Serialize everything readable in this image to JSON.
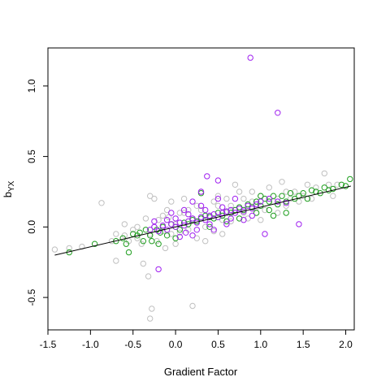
{
  "chart_data": {
    "type": "scatter",
    "title": "",
    "xlabel": "Gradient Factor",
    "ylabel_main": "b",
    "ylabel_sub": "YX",
    "xlim": [
      -1.5,
      2.1
    ],
    "ylim": [
      -0.73,
      1.27
    ],
    "x_ticks": [
      -1.5,
      -1.0,
      -0.5,
      0.0,
      0.5,
      1.0,
      1.5,
      2.0
    ],
    "x_tick_labels": [
      "-1.5",
      "-1.0",
      "-0.5",
      "0.0",
      "0.5",
      "1.0",
      "1.5",
      "2.0"
    ],
    "y_ticks": [
      -0.5,
      0.0,
      0.5,
      1.0
    ],
    "y_tick_labels": [
      "-0.5",
      "0.0",
      "0.5",
      "1.0"
    ],
    "grid": false,
    "legend": "none",
    "colors": {
      "gray": "#c0c0c0",
      "green": "#1e9e1e",
      "purple": "#a020f0",
      "line": "#000000"
    },
    "fit_line": {
      "x": [
        -1.42,
        2.06
      ],
      "y": [
        -0.2,
        0.29
      ]
    },
    "series": [
      {
        "color": "gray",
        "points": [
          [
            -1.42,
            -0.16
          ],
          [
            -1.25,
            -0.15
          ],
          [
            -1.1,
            -0.14
          ],
          [
            -0.87,
            0.17
          ],
          [
            -0.75,
            -0.1
          ],
          [
            -0.7,
            -0.24
          ],
          [
            -0.6,
            -0.06
          ],
          [
            -0.55,
            -0.1
          ],
          [
            -0.5,
            -0.02
          ],
          [
            -0.45,
            -0.08
          ],
          [
            -0.4,
            -0.12
          ],
          [
            -0.35,
            0.06
          ],
          [
            -0.38,
            -0.26
          ],
          [
            -0.3,
            -0.05
          ],
          [
            -0.25,
            0.0
          ],
          [
            -0.22,
            -0.1
          ],
          [
            -0.2,
            0.05
          ],
          [
            -0.15,
            -0.03
          ],
          [
            -0.12,
            -0.15
          ],
          [
            -0.08,
            0.07
          ],
          [
            -0.05,
            -0.05
          ],
          [
            0.0,
            0.02
          ],
          [
            0.05,
            -0.04
          ],
          [
            0.1,
            0.1
          ],
          [
            0.15,
            -0.02
          ],
          [
            0.2,
            0.06
          ],
          [
            0.25,
            -0.08
          ],
          [
            0.3,
            0.12
          ],
          [
            0.35,
            0.0
          ],
          [
            0.4,
            0.08
          ],
          [
            0.45,
            -0.03
          ],
          [
            0.5,
            0.15
          ],
          [
            0.55,
            0.05
          ],
          [
            0.6,
            0.2
          ],
          [
            0.65,
            0.04
          ],
          [
            0.7,
            0.12
          ],
          [
            0.75,
            0.25
          ],
          [
            0.8,
            0.1
          ],
          [
            0.85,
            0.06
          ],
          [
            0.9,
            0.18
          ],
          [
            0.95,
            0.14
          ],
          [
            1.0,
            0.22
          ],
          [
            1.05,
            0.12
          ],
          [
            1.1,
            0.28
          ],
          [
            1.15,
            0.18
          ],
          [
            1.2,
            0.2
          ],
          [
            1.25,
            0.32
          ],
          [
            1.3,
            0.15
          ],
          [
            1.35,
            0.2
          ],
          [
            1.4,
            0.25
          ],
          [
            1.5,
            0.22
          ],
          [
            1.55,
            0.3
          ],
          [
            1.6,
            0.2
          ],
          [
            1.65,
            0.28
          ],
          [
            1.75,
            0.38
          ],
          [
            1.8,
            0.3
          ],
          [
            1.85,
            0.22
          ],
          [
            1.9,
            0.3
          ],
          [
            -0.3,
            0.22
          ],
          [
            -0.25,
            0.2
          ],
          [
            -0.32,
            -0.35
          ],
          [
            -0.28,
            -0.58
          ],
          [
            -0.3,
            -0.65
          ],
          [
            0.2,
            -0.56
          ],
          [
            0.3,
            0.25
          ],
          [
            0.5,
            0.22
          ],
          [
            0.7,
            0.3
          ],
          [
            -0.05,
            0.18
          ],
          [
            0.1,
            0.2
          ],
          [
            -0.6,
            0.02
          ],
          [
            -0.7,
            -0.05
          ],
          [
            1.0,
            0.05
          ],
          [
            0.55,
            -0.05
          ],
          [
            0.25,
            0.15
          ],
          [
            0.35,
            -0.1
          ],
          [
            0.0,
            -0.12
          ],
          [
            -0.1,
            0.12
          ],
          [
            0.6,
            0.1
          ],
          [
            0.8,
            0.2
          ],
          [
            1.2,
            0.1
          ],
          [
            1.45,
            0.18
          ],
          [
            -0.45,
            0.0
          ],
          [
            -0.15,
            0.08
          ],
          [
            0.05,
            0.1
          ],
          [
            0.15,
            0.12
          ],
          [
            0.45,
            0.18
          ],
          [
            0.65,
            0.15
          ],
          [
            0.9,
            0.25
          ],
          [
            1.1,
            0.2
          ],
          [
            1.3,
            0.25
          ]
        ]
      },
      {
        "color": "green",
        "points": [
          [
            -1.25,
            -0.18
          ],
          [
            -0.95,
            -0.12
          ],
          [
            -0.7,
            -0.1
          ],
          [
            -0.62,
            -0.08
          ],
          [
            -0.58,
            -0.12
          ],
          [
            -0.55,
            -0.18
          ],
          [
            -0.5,
            -0.05
          ],
          [
            -0.45,
            -0.06
          ],
          [
            -0.42,
            -0.04
          ],
          [
            -0.38,
            -0.1
          ],
          [
            -0.35,
            -0.02
          ],
          [
            -0.3,
            -0.06
          ],
          [
            -0.28,
            -0.1
          ],
          [
            -0.22,
            -0.02
          ],
          [
            -0.18,
            -0.04
          ],
          [
            -0.15,
            0.0
          ],
          [
            -0.1,
            -0.06
          ],
          [
            -0.05,
            0.02
          ],
          [
            0.0,
            0.0
          ],
          [
            0.05,
            -0.02
          ],
          [
            0.1,
            0.03
          ],
          [
            0.15,
            0.02
          ],
          [
            0.2,
            0.05
          ],
          [
            0.25,
            0.04
          ],
          [
            0.3,
            0.06
          ],
          [
            0.35,
            0.08
          ],
          [
            0.4,
            0.07
          ],
          [
            0.45,
            0.06
          ],
          [
            0.5,
            0.1
          ],
          [
            0.55,
            0.08
          ],
          [
            0.6,
            0.11
          ],
          [
            0.65,
            0.1
          ],
          [
            0.7,
            0.12
          ],
          [
            0.75,
            0.14
          ],
          [
            0.8,
            0.12
          ],
          [
            0.85,
            0.16
          ],
          [
            0.9,
            0.14
          ],
          [
            0.95,
            0.18
          ],
          [
            1.0,
            0.15
          ],
          [
            1.05,
            0.2
          ],
          [
            1.1,
            0.18
          ],
          [
            1.15,
            0.22
          ],
          [
            1.2,
            0.16
          ],
          [
            1.25,
            0.22
          ],
          [
            1.3,
            0.18
          ],
          [
            1.35,
            0.24
          ],
          [
            1.4,
            0.2
          ],
          [
            1.45,
            0.22
          ],
          [
            1.5,
            0.24
          ],
          [
            1.55,
            0.2
          ],
          [
            1.6,
            0.26
          ],
          [
            1.65,
            0.25
          ],
          [
            1.7,
            0.24
          ],
          [
            1.75,
            0.28
          ],
          [
            1.8,
            0.26
          ],
          [
            1.85,
            0.27
          ],
          [
            1.95,
            0.3
          ],
          [
            2.05,
            0.34
          ],
          [
            2.0,
            0.29
          ],
          [
            0.3,
            0.24
          ],
          [
            0.95,
            0.1
          ],
          [
            1.1,
            0.12
          ],
          [
            1.3,
            0.1
          ],
          [
            1.15,
            0.08
          ],
          [
            0.75,
            0.06
          ],
          [
            0.4,
            0.0
          ],
          [
            -0.2,
            -0.12
          ],
          [
            0.0,
            -0.08
          ],
          [
            1.0,
            0.22
          ],
          [
            0.6,
            0.04
          ]
        ]
      },
      {
        "color": "purple",
        "points": [
          [
            0.88,
            1.2
          ],
          [
            1.2,
            0.81
          ],
          [
            0.37,
            0.36
          ],
          [
            0.5,
            0.33
          ],
          [
            0.3,
            0.25
          ],
          [
            -0.2,
            -0.3
          ],
          [
            1.05,
            -0.05
          ],
          [
            1.45,
            0.02
          ],
          [
            -0.3,
            -0.02
          ],
          [
            -0.25,
            0.0
          ],
          [
            -0.2,
            -0.03
          ],
          [
            -0.15,
            0.01
          ],
          [
            -0.1,
            -0.02
          ],
          [
            -0.05,
            0.02
          ],
          [
            0.0,
            0.0
          ],
          [
            0.05,
            0.03
          ],
          [
            0.1,
            0.01
          ],
          [
            0.12,
            -0.04
          ],
          [
            0.15,
            0.04
          ],
          [
            0.2,
            0.06
          ],
          [
            0.25,
            0.03
          ],
          [
            0.3,
            0.07
          ],
          [
            0.35,
            0.05
          ],
          [
            0.4,
            0.08
          ],
          [
            0.45,
            0.09
          ],
          [
            0.5,
            0.07
          ],
          [
            0.55,
            0.1
          ],
          [
            0.6,
            0.11
          ],
          [
            0.65,
            0.12
          ],
          [
            0.7,
            0.1
          ],
          [
            0.75,
            0.13
          ],
          [
            0.8,
            0.11
          ],
          [
            0.85,
            0.15
          ],
          [
            0.9,
            0.13
          ],
          [
            0.95,
            0.16
          ],
          [
            1.0,
            0.18
          ],
          [
            1.1,
            0.2
          ],
          [
            1.2,
            0.18
          ],
          [
            1.3,
            0.17
          ],
          [
            0.05,
            -0.07
          ],
          [
            0.2,
            -0.06
          ],
          [
            0.45,
            -0.02
          ],
          [
            0.6,
            0.02
          ],
          [
            -0.05,
            0.1
          ],
          [
            0.1,
            0.12
          ],
          [
            0.3,
            0.15
          ],
          [
            0.7,
            0.2
          ],
          [
            0.2,
            0.18
          ],
          [
            -0.1,
            0.05
          ],
          [
            0.0,
            0.06
          ],
          [
            0.15,
            0.09
          ],
          [
            0.35,
            0.12
          ],
          [
            0.55,
            0.14
          ],
          [
            0.25,
            -0.02
          ],
          [
            0.4,
            0.02
          ],
          [
            0.8,
            0.05
          ],
          [
            0.9,
            0.08
          ],
          [
            -0.25,
            0.04
          ],
          [
            0.65,
            0.06
          ],
          [
            0.5,
            0.2
          ]
        ]
      }
    ]
  }
}
